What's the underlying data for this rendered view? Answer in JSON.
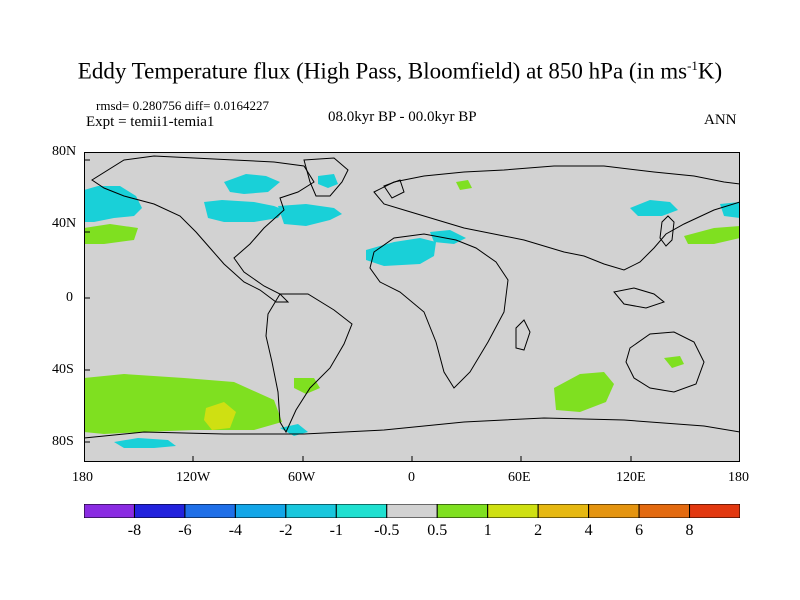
{
  "header": {
    "title": "Eddy Temperature flux (High Pass, Bloomfield) at 850 hPa (in ms",
    "title_sup": "-1",
    "title_end": "K)",
    "rmsd_line": "rmsd= 0.280756 diff= 0.0164227",
    "expt_line": "Expt = temii1-temia1",
    "period": "08.0kyr BP - 00.0kyr BP",
    "season": "ANN"
  },
  "axes": {
    "lat_labels": [
      "80N",
      "40N",
      "0",
      "40S",
      "80S"
    ],
    "lon_labels": [
      "180",
      "120W",
      "60W",
      "0",
      "60E",
      "120E",
      "180"
    ]
  },
  "colorbar": {
    "colors": [
      "#8a2be2",
      "#2222dd",
      "#1f6fe8",
      "#13a6e8",
      "#19c7dd",
      "#1fe0d0",
      "#d2d2d2",
      "#7fe020",
      "#cfe012",
      "#e6b812",
      "#e49410",
      "#e36a10",
      "#e23810"
    ],
    "labels": [
      "-8",
      "-6",
      "-4",
      "-2",
      "-1",
      "-0.5",
      "0.5",
      "1",
      "2",
      "4",
      "6",
      "8"
    ]
  },
  "map": {
    "land_color": "#d2d2d2",
    "coast_color": "#000000"
  }
}
